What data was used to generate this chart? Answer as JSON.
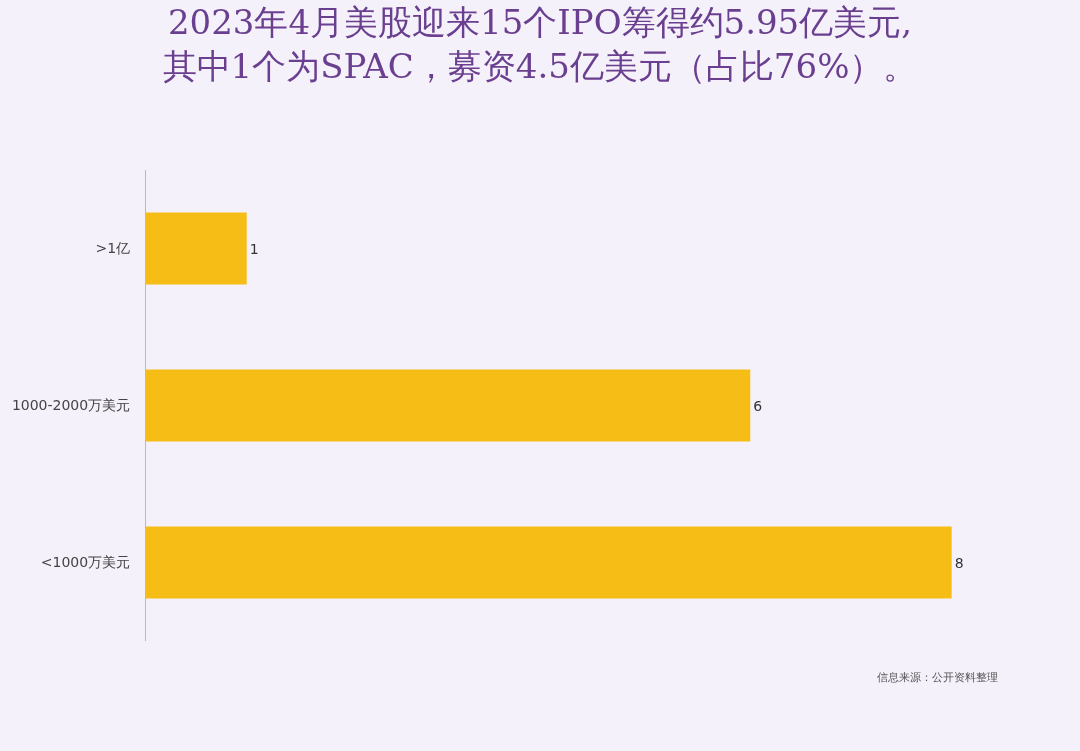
{
  "chart_data": {
    "type": "bar",
    "orientation": "horizontal",
    "title": "2023年4月美股迎来15个IPO筹得约5.95亿美元,\n其中1个为SPAC，募资4.5亿美元（占比76%）。",
    "categories": [
      ">1亿",
      "1000-2000万美元",
      "<1000万美元"
    ],
    "values": [
      1,
      6,
      8
    ],
    "color": "#f6bd16",
    "data_labels": true,
    "grid": false,
    "tick_labels": "y",
    "annotations": [
      "信息来源：公开资料整理"
    ]
  }
}
